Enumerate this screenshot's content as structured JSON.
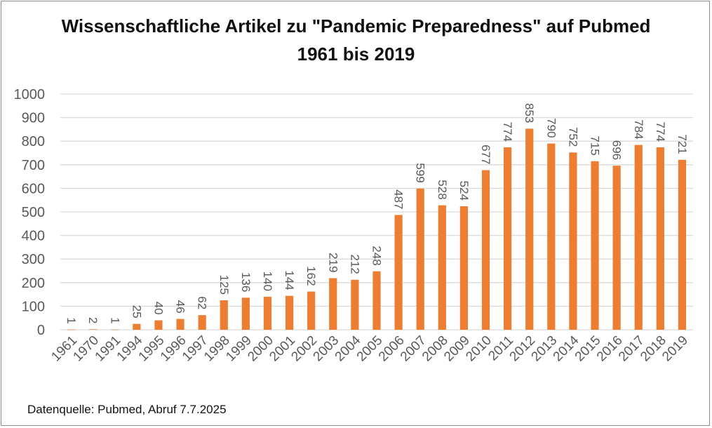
{
  "chart_data": {
    "type": "bar",
    "title_line1": "Wissenschaftliche Artikel zu \"Pandemic Preparedness\" auf Pubmed",
    "title_line2": "1961 bis 2019",
    "categories": [
      "1961",
      "1970",
      "1991",
      "1994",
      "1995",
      "1996",
      "1997",
      "1998",
      "1999",
      "2000",
      "2001",
      "2002",
      "2003",
      "2004",
      "2005",
      "2006",
      "2007",
      "2008",
      "2009",
      "2010",
      "2011",
      "2012",
      "2013",
      "2014",
      "2015",
      "2016",
      "2017",
      "2018",
      "2019"
    ],
    "values": [
      1,
      2,
      1,
      25,
      40,
      46,
      62,
      125,
      136,
      140,
      144,
      162,
      219,
      212,
      248,
      487,
      599,
      528,
      524,
      677,
      774,
      853,
      790,
      752,
      715,
      696,
      784,
      774,
      721
    ],
    "xlabel": "",
    "ylabel": "",
    "ylim": [
      0,
      1000
    ],
    "yticks": [
      0,
      100,
      200,
      300,
      400,
      500,
      600,
      700,
      800,
      900,
      1000
    ],
    "grid": true,
    "legend": "none",
    "bar_color": "#ed7d31",
    "grid_color": "#d9d9d9",
    "label_color": "#595959"
  },
  "footer": {
    "source": "Datenquelle: Pubmed, Abruf 7.7.2025"
  }
}
